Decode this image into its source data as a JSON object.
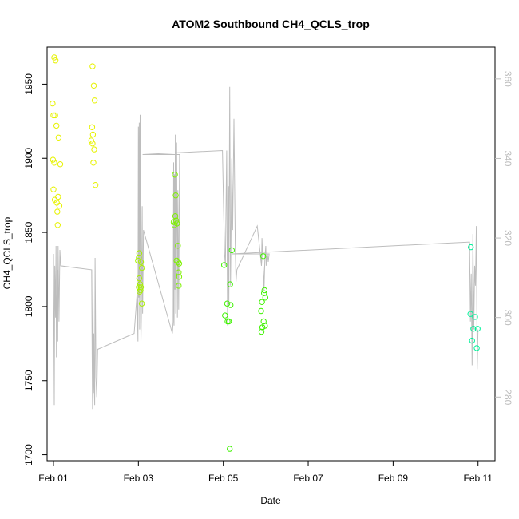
{
  "chart_data": {
    "type": "scatter",
    "title": "ATOM2 Southbound CH4_QCLS_trop",
    "xlabel": "Date",
    "ylabel": "CH4_QCLS_trop",
    "xlim": [
      -0.15,
      10.4
    ],
    "ylim": [
      1696,
      1975
    ],
    "y2lim": [
      264,
      368
    ],
    "x_ticks": [
      {
        "value": 0,
        "label": "Feb 01"
      },
      {
        "value": 2,
        "label": "Feb 03"
      },
      {
        "value": 4,
        "label": "Feb 05"
      },
      {
        "value": 6,
        "label": "Feb 07"
      },
      {
        "value": 8,
        "label": "Feb 09"
      },
      {
        "value": 10,
        "label": "Feb 11"
      }
    ],
    "y_ticks": [
      {
        "value": 1700,
        "label": "1700"
      },
      {
        "value": 1750,
        "label": "1750"
      },
      {
        "value": 1800,
        "label": "1800"
      },
      {
        "value": 1850,
        "label": "1850"
      },
      {
        "value": 1900,
        "label": "1900"
      },
      {
        "value": 1950,
        "label": "1950"
      }
    ],
    "y2_ticks": [
      {
        "value": 280,
        "label": "280"
      },
      {
        "value": 300,
        "label": "300"
      },
      {
        "value": 320,
        "label": "320"
      },
      {
        "value": 340,
        "label": "340"
      },
      {
        "value": 360,
        "label": "360"
      }
    ],
    "points": [
      {
        "x": 0.02,
        "y": 1968,
        "color": "#e6f200"
      },
      {
        "x": 0.05,
        "y": 1966,
        "color": "#e6f200"
      },
      {
        "x": -0.02,
        "y": 1937,
        "color": "#e6f200"
      },
      {
        "x": 0.0,
        "y": 1929,
        "color": "#e6f200"
      },
      {
        "x": 0.04,
        "y": 1929,
        "color": "#e6f200"
      },
      {
        "x": 0.07,
        "y": 1922,
        "color": "#e6f200"
      },
      {
        "x": 0.12,
        "y": 1914,
        "color": "#e6f200"
      },
      {
        "x": -0.01,
        "y": 1899,
        "color": "#e6f200"
      },
      {
        "x": 0.02,
        "y": 1897,
        "color": "#e6f200"
      },
      {
        "x": 0.16,
        "y": 1896,
        "color": "#e6f200"
      },
      {
        "x": 0.0,
        "y": 1879,
        "color": "#e6f200"
      },
      {
        "x": 0.11,
        "y": 1874,
        "color": "#e6f200"
      },
      {
        "x": 0.03,
        "y": 1872,
        "color": "#e6f200"
      },
      {
        "x": 0.08,
        "y": 1870,
        "color": "#e6f200"
      },
      {
        "x": 0.14,
        "y": 1868,
        "color": "#e6f200"
      },
      {
        "x": 0.09,
        "y": 1864,
        "color": "#e6f200"
      },
      {
        "x": 0.1,
        "y": 1855,
        "color": "#e6f200"
      },
      {
        "x": 0.92,
        "y": 1962,
        "color": "#e6f200"
      },
      {
        "x": 0.95,
        "y": 1949,
        "color": "#e6f200"
      },
      {
        "x": 0.97,
        "y": 1939,
        "color": "#e6f200"
      },
      {
        "x": 0.91,
        "y": 1921,
        "color": "#e6f200"
      },
      {
        "x": 0.93,
        "y": 1916,
        "color": "#e6f200"
      },
      {
        "x": 0.89,
        "y": 1912,
        "color": "#e6f200"
      },
      {
        "x": 0.92,
        "y": 1910,
        "color": "#e6f200"
      },
      {
        "x": 0.96,
        "y": 1906,
        "color": "#e6f200"
      },
      {
        "x": 0.94,
        "y": 1897,
        "color": "#e6f200"
      },
      {
        "x": 0.99,
        "y": 1882,
        "color": "#e6f200"
      },
      {
        "x": 2.02,
        "y": 1836,
        "color": "#a8f200"
      },
      {
        "x": 2.01,
        "y": 1833,
        "color": "#a8f200"
      },
      {
        "x": 2.06,
        "y": 1830,
        "color": "#a8f200"
      },
      {
        "x": 1.99,
        "y": 1831,
        "color": "#a8f200"
      },
      {
        "x": 2.08,
        "y": 1826,
        "color": "#a8f200"
      },
      {
        "x": 2.02,
        "y": 1819,
        "color": "#a8f200"
      },
      {
        "x": 2.04,
        "y": 1815,
        "color": "#a8f200"
      },
      {
        "x": 2.06,
        "y": 1813,
        "color": "#a8f200"
      },
      {
        "x": 2.01,
        "y": 1813,
        "color": "#a8f200"
      },
      {
        "x": 2.05,
        "y": 1811,
        "color": "#a8f200"
      },
      {
        "x": 2.03,
        "y": 1810,
        "color": "#a8f200"
      },
      {
        "x": 2.08,
        "y": 1802,
        "color": "#a8f200"
      },
      {
        "x": 2.86,
        "y": 1889,
        "color": "#7ef200"
      },
      {
        "x": 2.88,
        "y": 1875,
        "color": "#7ef200"
      },
      {
        "x": 2.87,
        "y": 1861,
        "color": "#7ef200"
      },
      {
        "x": 2.89,
        "y": 1858,
        "color": "#7ef200"
      },
      {
        "x": 2.83,
        "y": 1857,
        "color": "#7ef200"
      },
      {
        "x": 2.91,
        "y": 1856,
        "color": "#7ef200"
      },
      {
        "x": 2.85,
        "y": 1855,
        "color": "#7ef200"
      },
      {
        "x": 2.93,
        "y": 1841,
        "color": "#7ef200"
      },
      {
        "x": 2.9,
        "y": 1831,
        "color": "#7ef200"
      },
      {
        "x": 2.94,
        "y": 1830,
        "color": "#7ef200"
      },
      {
        "x": 2.96,
        "y": 1829,
        "color": "#7ef200"
      },
      {
        "x": 2.95,
        "y": 1823,
        "color": "#7ef200"
      },
      {
        "x": 2.96,
        "y": 1820,
        "color": "#7ef200"
      },
      {
        "x": 2.95,
        "y": 1814,
        "color": "#7ef200"
      },
      {
        "x": 4.02,
        "y": 1828,
        "color": "#3ef200"
      },
      {
        "x": 4.2,
        "y": 1838,
        "color": "#3ef200"
      },
      {
        "x": 4.16,
        "y": 1815,
        "color": "#3ef200"
      },
      {
        "x": 4.09,
        "y": 1802,
        "color": "#3ef200"
      },
      {
        "x": 4.17,
        "y": 1801,
        "color": "#3ef200"
      },
      {
        "x": 4.04,
        "y": 1794,
        "color": "#3ef200"
      },
      {
        "x": 4.1,
        "y": 1790,
        "color": "#3ef200"
      },
      {
        "x": 4.13,
        "y": 1790,
        "color": "#3ef200"
      },
      {
        "x": 4.15,
        "y": 1704,
        "color": "#3ef200"
      },
      {
        "x": 4.94,
        "y": 1834,
        "color": "#3ef200"
      },
      {
        "x": 4.97,
        "y": 1811,
        "color": "#3ef200"
      },
      {
        "x": 4.96,
        "y": 1809,
        "color": "#3ef200"
      },
      {
        "x": 4.99,
        "y": 1806,
        "color": "#3ef200"
      },
      {
        "x": 4.91,
        "y": 1803,
        "color": "#3ef200"
      },
      {
        "x": 4.89,
        "y": 1797,
        "color": "#3ef200"
      },
      {
        "x": 4.95,
        "y": 1790,
        "color": "#3ef200"
      },
      {
        "x": 4.98,
        "y": 1787,
        "color": "#3ef200"
      },
      {
        "x": 4.92,
        "y": 1786,
        "color": "#3ef200"
      },
      {
        "x": 4.9,
        "y": 1783,
        "color": "#3ef200"
      },
      {
        "x": 9.83,
        "y": 1840,
        "color": "#00f29a"
      },
      {
        "x": 9.82,
        "y": 1795,
        "color": "#00f29a"
      },
      {
        "x": 9.93,
        "y": 1793,
        "color": "#00f29a"
      },
      {
        "x": 9.89,
        "y": 1785,
        "color": "#00f29a"
      },
      {
        "x": 9.99,
        "y": 1785,
        "color": "#00f29a"
      },
      {
        "x": 9.86,
        "y": 1777,
        "color": "#00f29a"
      },
      {
        "x": 9.97,
        "y": 1772,
        "color": "#00f29a"
      }
    ],
    "altitude_series": {
      "axis": "right",
      "color": "#bdbdbd",
      "x": [
        0.0,
        0.02,
        0.03,
        0.05,
        0.06,
        0.07,
        0.09,
        0.1,
        0.11,
        0.13,
        0.15,
        0.17,
        0.9,
        0.91,
        0.92,
        0.93,
        0.94,
        0.95,
        0.96,
        0.97,
        0.98,
        0.99,
        1.0,
        1.02,
        1.04,
        1.9,
        1.97,
        1.99,
        2.0,
        2.01,
        2.02,
        2.03,
        2.04,
        2.05,
        2.06,
        2.07,
        2.08,
        2.09,
        2.1,
        2.12,
        2.8,
        2.82,
        2.83,
        2.84,
        2.85,
        2.86,
        2.87,
        2.88,
        2.9,
        2.92,
        2.93,
        2.95,
        2.97,
        2.1,
        3.98,
        4.0,
        4.03,
        4.05,
        4.08,
        4.1,
        4.12,
        4.13,
        4.15,
        4.17,
        4.2,
        4.22,
        4.25,
        4.28,
        4.3,
        4.32,
        4.8,
        4.85,
        4.9,
        4.91,
        4.93,
        4.95,
        4.96,
        4.98,
        5.0,
        5.01,
        5.02,
        5.04,
        5.06,
        5.08,
        4.2,
        9.8,
        9.82,
        9.84,
        9.86,
        9.88,
        9.9,
        9.92,
        9.94,
        9.96,
        9.98,
        10.0
      ],
      "y": [
        316,
        278,
        313,
        300,
        318,
        290,
        312,
        294,
        318,
        299,
        317,
        313,
        312,
        291,
        277,
        312,
        281,
        296,
        283,
        278,
        315,
        302,
        285,
        280,
        292,
        296,
        306,
        294,
        348,
        305,
        349,
        297,
        351,
        330,
        294,
        300,
        317,
        328,
        301,
        322,
        296,
        299,
        339,
        298,
        336,
        307,
        346,
        301,
        344,
        300,
        332,
        302,
        341,
        341,
        342,
        331,
        316,
        313,
        342,
        298,
        333,
        303,
        358,
        308,
        340,
        322,
        350,
        319,
        309,
        312,
        323,
        318,
        313,
        320,
        315,
        310,
        307,
        315,
        318,
        313,
        315,
        316,
        314,
        316,
        316,
        319,
        299,
        311,
        288,
        321,
        297,
        313,
        308,
        323,
        287,
        297
      ]
    }
  }
}
